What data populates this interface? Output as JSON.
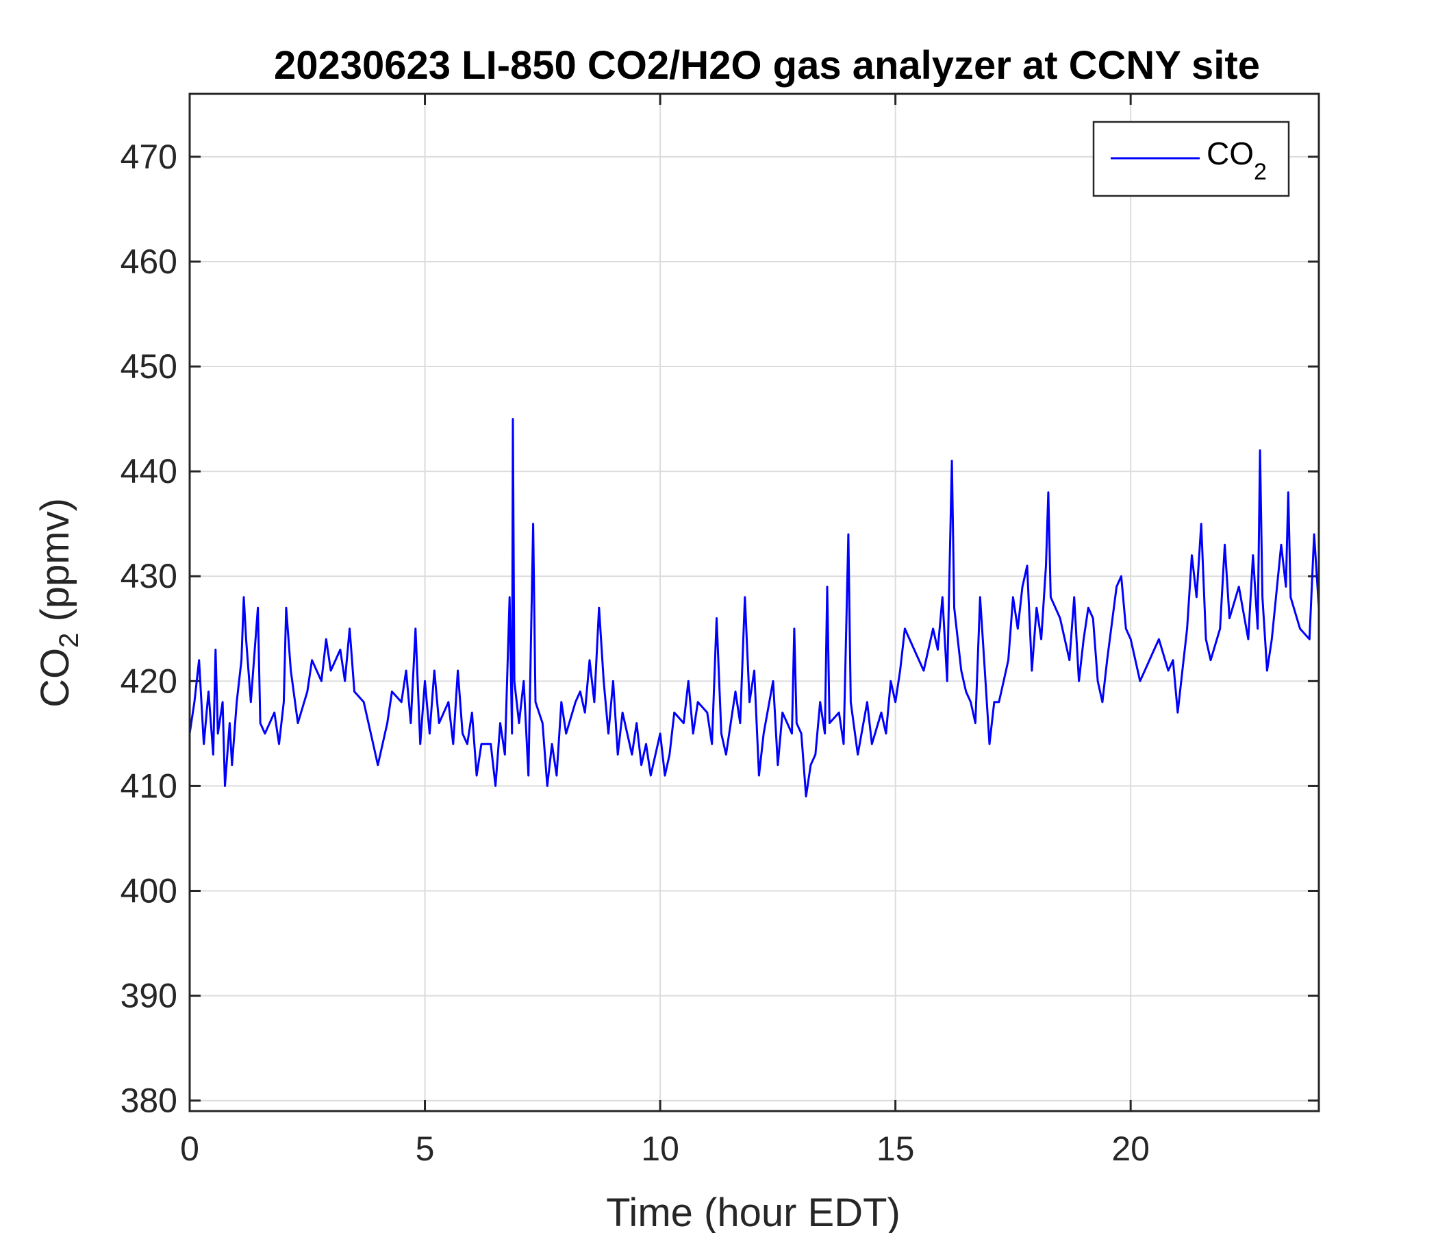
{
  "chart_data": {
    "type": "line",
    "title": "20230623 LI-850 CO2/H2O gas analyzer at CCNY site",
    "xlabel": "Time (hour EDT)",
    "ylabel_main": "CO",
    "ylabel_sub": "2",
    "ylabel_unit": " (ppmv)",
    "xlim": [
      0,
      24
    ],
    "ylim": [
      379,
      476
    ],
    "xticks": [
      0,
      5,
      10,
      15,
      20
    ],
    "yticks": [
      380,
      390,
      400,
      410,
      420,
      430,
      440,
      450,
      460,
      470
    ],
    "grid": true,
    "legend": {
      "placement": "top-right",
      "label_main": "CO",
      "label_sub": "2"
    },
    "series": [
      {
        "name": "CO2",
        "color": "#0000ff",
        "x": [
          0,
          0.1,
          0.2,
          0.3,
          0.4,
          0.5,
          0.55,
          0.6,
          0.7,
          0.75,
          0.85,
          0.9,
          1.0,
          1.1,
          1.15,
          1.2,
          1.3,
          1.45,
          1.5,
          1.6,
          1.8,
          1.9,
          2.0,
          2.05,
          2.15,
          2.3,
          2.5,
          2.6,
          2.8,
          2.9,
          3.0,
          3.2,
          3.3,
          3.4,
          3.5,
          3.7,
          3.9,
          4.0,
          4.2,
          4.3,
          4.5,
          4.6,
          4.7,
          4.8,
          4.9,
          5.0,
          5.1,
          5.2,
          5.3,
          5.5,
          5.6,
          5.7,
          5.8,
          5.9,
          6.0,
          6.1,
          6.2,
          6.4,
          6.5,
          6.6,
          6.7,
          6.8,
          6.85,
          6.87,
          6.9,
          7.0,
          7.1,
          7.2,
          7.3,
          7.35,
          7.5,
          7.6,
          7.7,
          7.8,
          7.9,
          8.0,
          8.2,
          8.3,
          8.4,
          8.5,
          8.6,
          8.7,
          8.8,
          8.9,
          9.0,
          9.1,
          9.2,
          9.4,
          9.5,
          9.6,
          9.7,
          9.8,
          10.0,
          10.1,
          10.2,
          10.3,
          10.5,
          10.6,
          10.7,
          10.8,
          11.0,
          11.1,
          11.2,
          11.3,
          11.4,
          11.6,
          11.7,
          11.8,
          11.9,
          12.0,
          12.1,
          12.2,
          12.4,
          12.5,
          12.6,
          12.8,
          12.85,
          12.9,
          13.0,
          13.1,
          13.2,
          13.3,
          13.4,
          13.5,
          13.55,
          13.6,
          13.8,
          13.9,
          14.0,
          14.05,
          14.2,
          14.4,
          14.5,
          14.7,
          14.8,
          14.9,
          15.0,
          15.1,
          15.2,
          15.4,
          15.6,
          15.8,
          15.9,
          16.0,
          16.1,
          16.2,
          16.25,
          16.4,
          16.5,
          16.6,
          16.7,
          16.8,
          16.9,
          17.0,
          17.1,
          17.2,
          17.3,
          17.4,
          17.5,
          17.6,
          17.7,
          17.8,
          17.9,
          18.0,
          18.1,
          18.2,
          18.25,
          18.3,
          18.5,
          18.7,
          18.8,
          18.9,
          19.0,
          19.1,
          19.2,
          19.3,
          19.4,
          19.5,
          19.7,
          19.8,
          19.9,
          20.0,
          20.2,
          20.3,
          20.5,
          20.6,
          20.8,
          20.9,
          21.0,
          21.1,
          21.2,
          21.3,
          21.4,
          21.5,
          21.6,
          21.7,
          21.9,
          22.0,
          22.1,
          22.3,
          22.5,
          22.6,
          22.7,
          22.75,
          22.8,
          22.9,
          23.0,
          23.2,
          23.3,
          23.35,
          23.4,
          23.6,
          23.8,
          23.9,
          24.0
        ],
        "y": [
          415,
          418,
          422,
          414,
          419,
          413,
          423,
          415,
          418,
          410,
          416,
          412,
          418,
          422,
          428,
          424,
          418,
          427,
          416,
          415,
          417,
          414,
          418,
          427,
          421,
          416,
          419,
          422,
          420,
          424,
          421,
          423,
          420,
          425,
          419,
          418,
          414,
          412,
          416,
          419,
          418,
          421,
          416,
          425,
          414,
          420,
          415,
          421,
          416,
          418,
          414,
          421,
          415,
          414,
          417,
          411,
          414,
          414,
          410,
          416,
          413,
          428,
          415,
          445,
          420,
          416,
          420,
          411,
          435,
          418,
          416,
          410,
          414,
          411,
          418,
          415,
          418,
          419,
          417,
          422,
          418,
          427,
          420,
          415,
          420,
          413,
          417,
          413,
          416,
          412,
          414,
          411,
          415,
          411,
          413,
          417,
          416,
          420,
          415,
          418,
          417,
          414,
          426,
          415,
          413,
          419,
          416,
          428,
          418,
          421,
          411,
          415,
          420,
          412,
          417,
          415,
          425,
          416,
          415,
          409,
          412,
          413,
          418,
          415,
          429,
          416,
          417,
          414,
          434,
          418,
          413,
          418,
          414,
          417,
          415,
          420,
          418,
          421,
          425,
          423,
          421,
          425,
          423,
          428,
          420,
          441,
          427,
          421,
          419,
          418,
          416,
          428,
          421,
          414,
          418,
          418,
          420,
          422,
          428,
          425,
          429,
          431,
          421,
          427,
          424,
          431,
          438,
          428,
          426,
          422,
          428,
          420,
          424,
          427,
          426,
          420,
          418,
          422,
          429,
          430,
          425,
          424,
          420,
          421,
          423,
          424,
          421,
          422,
          417,
          421,
          425,
          432,
          428,
          435,
          424,
          422,
          425,
          433,
          426,
          429,
          424,
          432,
          425,
          442,
          428,
          421,
          424,
          433,
          429,
          438,
          428,
          425,
          424,
          434,
          427
        ]
      }
    ]
  }
}
